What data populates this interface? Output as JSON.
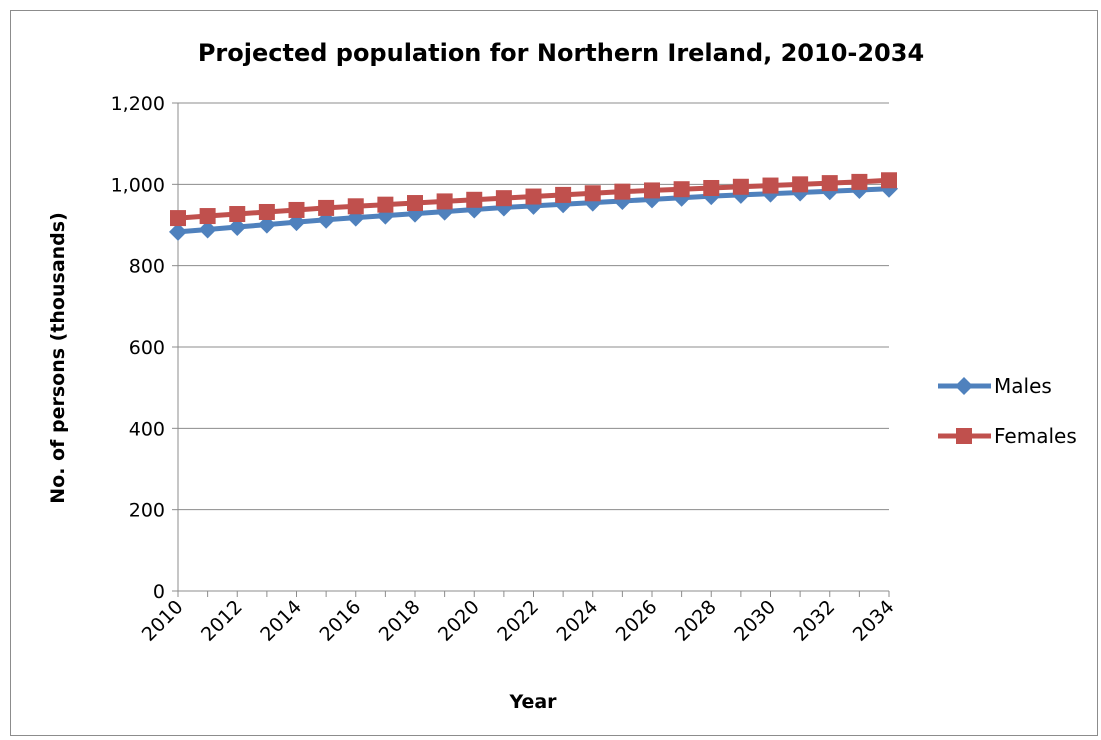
{
  "chart_data": {
    "type": "line",
    "title": "Projected population for Northern Ireland, 2010-2034",
    "xlabel": "Year",
    "ylabel": "No. of persons (thousands)",
    "x": [
      2010,
      2011,
      2012,
      2013,
      2014,
      2015,
      2016,
      2017,
      2018,
      2019,
      2020,
      2021,
      2022,
      2023,
      2024,
      2025,
      2026,
      2027,
      2028,
      2029,
      2030,
      2031,
      2032,
      2033,
      2034
    ],
    "x_tick_labels": [
      "2010",
      "2012",
      "2014",
      "2016",
      "2018",
      "2020",
      "2022",
      "2024",
      "2026",
      "2028",
      "2030",
      "2032",
      "2034"
    ],
    "ylim": [
      0,
      1200
    ],
    "y_ticks": [
      0,
      200,
      400,
      600,
      800,
      1000,
      1200
    ],
    "y_tick_labels": [
      "0",
      "200",
      "400",
      "600",
      "800",
      "1,000",
      "1,200"
    ],
    "grid": true,
    "legend_position": "right",
    "series": [
      {
        "name": "Males",
        "color": "#4f81bd",
        "marker": "diamond",
        "values": [
          883,
          889,
          895,
          901,
          907,
          913,
          918,
          923,
          928,
          933,
          938,
          943,
          947,
          951,
          955,
          959,
          963,
          967,
          971,
          974,
          977,
          980,
          983,
          986,
          989
        ]
      },
      {
        "name": "Females",
        "color": "#c0504d",
        "marker": "square",
        "values": [
          917,
          922,
          927,
          932,
          937,
          942,
          946,
          950,
          954,
          958,
          962,
          966,
          970,
          974,
          978,
          982,
          985,
          988,
          991,
          994,
          997,
          1000,
          1003,
          1006,
          1010
        ]
      }
    ]
  }
}
